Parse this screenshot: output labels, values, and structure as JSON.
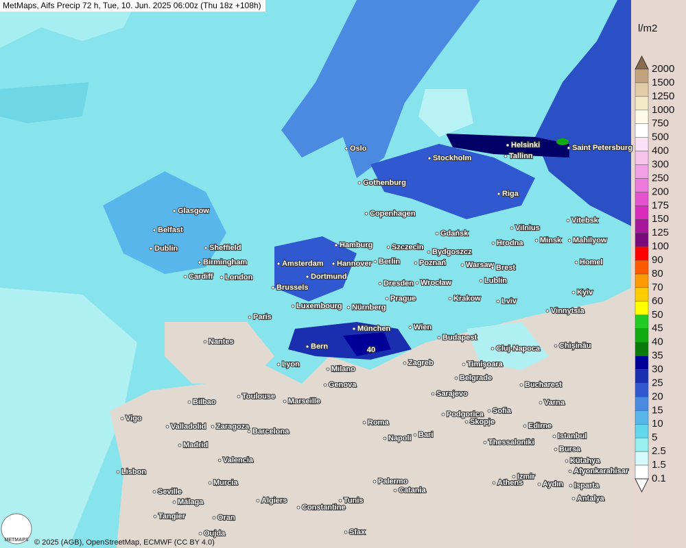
{
  "header": {
    "title": "MetMaps, Aifs Precip 72 h, Tue, 10. Jun. 2025 06:00z (Thu 18z +108h)"
  },
  "legend": {
    "unit": "l/m2",
    "items": [
      {
        "label": 2000,
        "color": "#8b6a4e"
      },
      {
        "label": 1500,
        "color": "#c4a37f"
      },
      {
        "label": 1250,
        "color": "#e2cda6"
      },
      {
        "label": 1000,
        "color": "#f3e9c6"
      },
      {
        "label": 750,
        "color": "#fffbe8"
      },
      {
        "label": 500,
        "color": "#ffffff"
      },
      {
        "label": 400,
        "color": "#fce0f5"
      },
      {
        "label": 300,
        "color": "#f8c2ef"
      },
      {
        "label": 250,
        "color": "#f2a0e6"
      },
      {
        "label": 200,
        "color": "#ec7bdc"
      },
      {
        "label": 175,
        "color": "#e652cf"
      },
      {
        "label": 150,
        "color": "#d92cbc"
      },
      {
        "label": 125,
        "color": "#a7169a"
      },
      {
        "label": 100,
        "color": "#7a0a7a"
      },
      {
        "label": 90,
        "color": "#ff0000"
      },
      {
        "label": 80,
        "color": "#ff5a00"
      },
      {
        "label": 70,
        "color": "#ff9900"
      },
      {
        "label": 60,
        "color": "#ffcc00"
      },
      {
        "label": 50,
        "color": "#ffff00"
      },
      {
        "label": 45,
        "color": "#22cc22"
      },
      {
        "label": 40,
        "color": "#11aa11"
      },
      {
        "label": 35,
        "color": "#0a7a0a"
      },
      {
        "label": 30,
        "color": "#000099"
      },
      {
        "label": 25,
        "color": "#1a2fb0"
      },
      {
        "label": 20,
        "color": "#3058d0"
      },
      {
        "label": 15,
        "color": "#4a8ae0"
      },
      {
        "label": 10,
        "color": "#58b6ea"
      },
      {
        "label": 5,
        "color": "#62d6ea"
      },
      {
        "label": 2.5,
        "color": "#9af0f0"
      },
      {
        "label": 1.5,
        "color": "#d6fafa"
      },
      {
        "label": 0.1,
        "color": "#ffffff"
      }
    ]
  },
  "map": {
    "max_label": 40,
    "cities": [
      "Oslo",
      "Stockholm",
      "Helsinki",
      "Saint Petersburg",
      "Tallinn",
      "Gothenburg",
      "Riga",
      "Copenhagen",
      "Glasgow",
      "Belfast",
      "Gdańsk",
      "Vilnius",
      "Vitebsk",
      "Dublin",
      "Sheffield",
      "Hamburg",
      "Szczecin",
      "Bydgoszcz",
      "Hrodna",
      "Minsk",
      "Mahilyow",
      "Birmingham",
      "Amsterdam",
      "Hannover",
      "Berlin",
      "Poznań",
      "Warsaw",
      "Brest",
      "Homel",
      "Cardiff",
      "London",
      "Dortmund",
      "Lublin",
      "Brussels",
      "Dresden",
      "Wrocław",
      "Kyiv",
      "Luxembourg",
      "Prague",
      "Krakow",
      "Lviv",
      "Paris",
      "Nürnberg",
      "Vinnytsia",
      "München",
      "Wien",
      "Budapest",
      "Nantes",
      "Bern",
      "Cluj-Napoca",
      "Chișinău",
      "Lyon",
      "Zagreb",
      "Timișoara",
      "Milano",
      "Belgrade",
      "Bucharest",
      "Genova",
      "Toulouse",
      "Marseille",
      "Bilbao",
      "Sarajevo",
      "Varna",
      "Sofia",
      "Podgorica",
      "Skopje",
      "Vigo",
      "Valladolid",
      "Zaragoza",
      "Barcelona",
      "Roma",
      "Edirne",
      "Istanbul",
      "Napoli",
      "Bari",
      "Madrid",
      "Thessaloniki",
      "Bursa",
      "Valencia",
      "Kütahya",
      "Afyonkarahisar",
      "Lisbon",
      "Izmir",
      "Aydın",
      "Isparta",
      "Palermo",
      "Athens",
      "Murcia",
      "Catania",
      "Seville",
      "Antalya",
      "Málaga",
      "Algiers",
      "Tunis",
      "Constantine",
      "Tangier",
      "Oran",
      "Oujda",
      "Sfax"
    ]
  },
  "footer": {
    "copyright": "© 2025 (AGB), OpenStreetMap, ECMWF (CC BY 4.0)",
    "logo": "METMAPS"
  }
}
